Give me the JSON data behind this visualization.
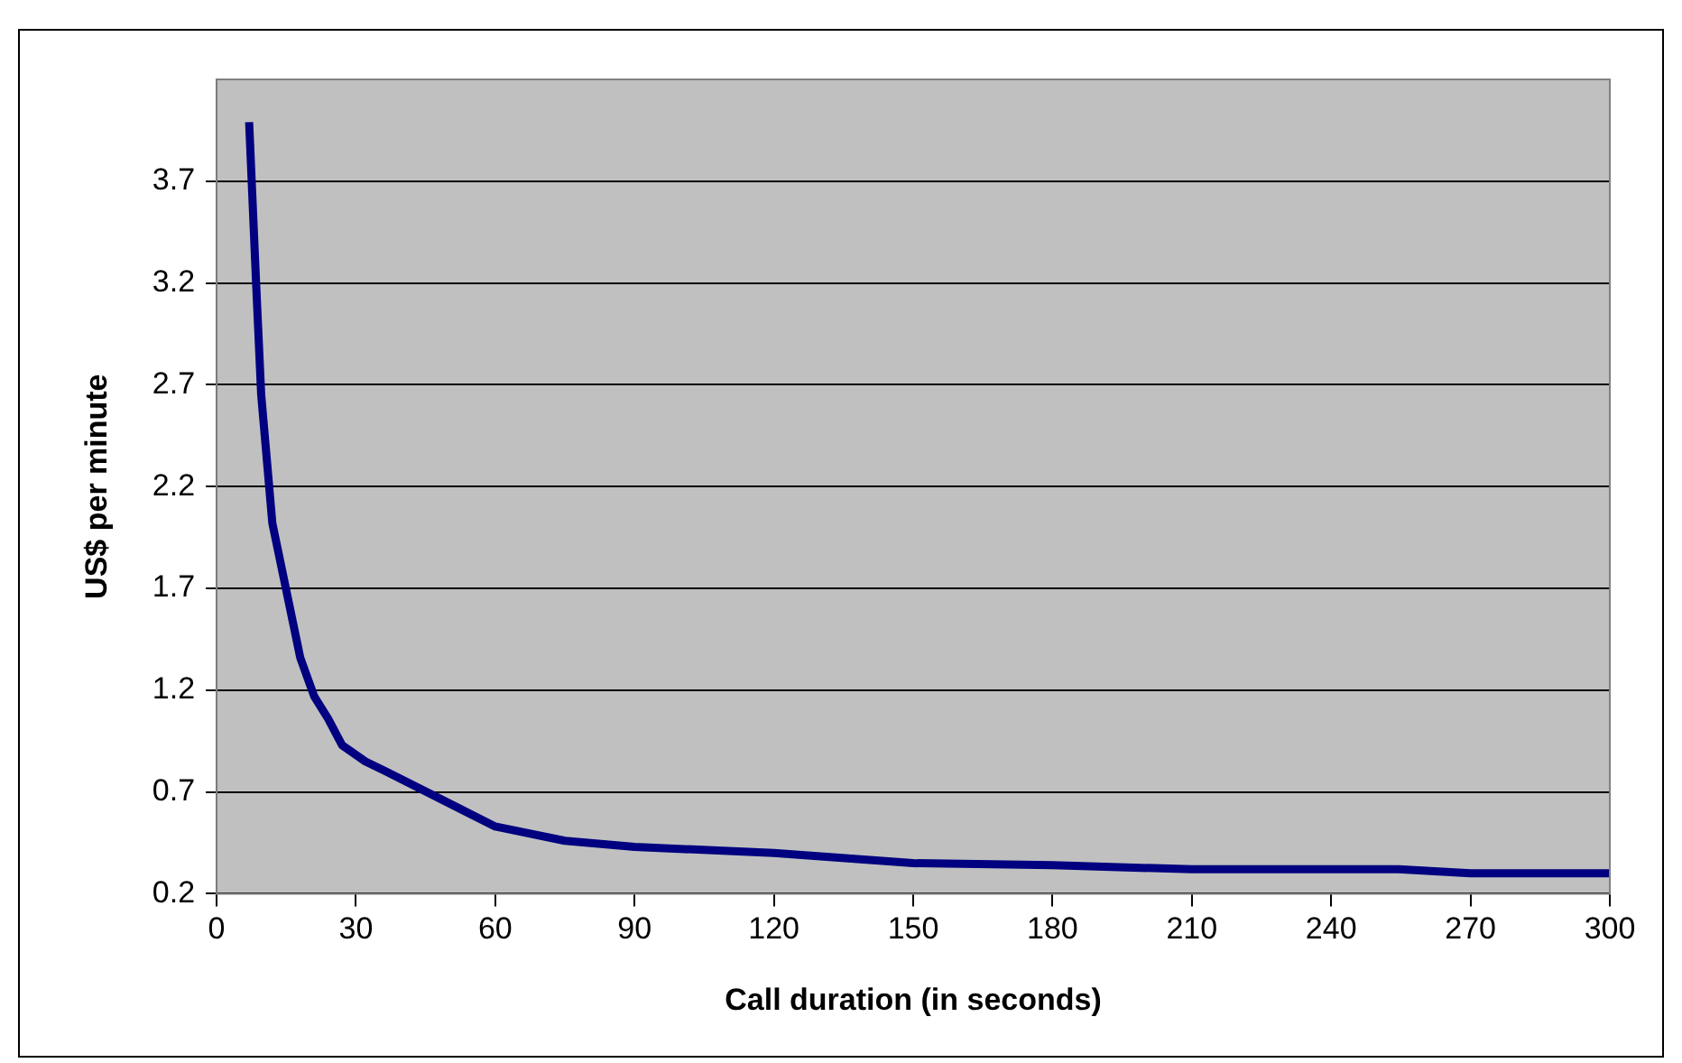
{
  "chart_data": {
    "type": "line",
    "xlabel": "Call duration (in seconds)",
    "ylabel": "US$ per minute",
    "x": [
      7,
      8.5,
      9.6,
      12,
      18,
      21,
      24,
      27,
      32,
      36.5,
      60,
      75,
      90,
      120,
      150,
      180,
      210,
      254.5,
      270,
      300
    ],
    "series": [
      {
        "color": "#000080",
        "values": [
          3.99,
          3.2,
          2.65,
          2.02,
          1.36,
          1.17,
          1.06,
          0.93,
          0.85,
          0.8,
          0.53,
          0.46,
          0.43,
          0.4,
          0.35,
          0.34,
          0.32,
          0.32,
          0.3,
          0.3
        ]
      }
    ],
    "xlim": [
      0,
      300
    ],
    "xticks": [
      0,
      30,
      60,
      90,
      120,
      150,
      180,
      210,
      240,
      270,
      300
    ],
    "ylim": [
      0.2,
      4.2
    ],
    "yticks": [
      0.2,
      0.7,
      1.2,
      1.7,
      2.2,
      2.7,
      3.2,
      3.7
    ],
    "grid": "y",
    "legend": false,
    "marker": "none",
    "line_style": "solid"
  }
}
